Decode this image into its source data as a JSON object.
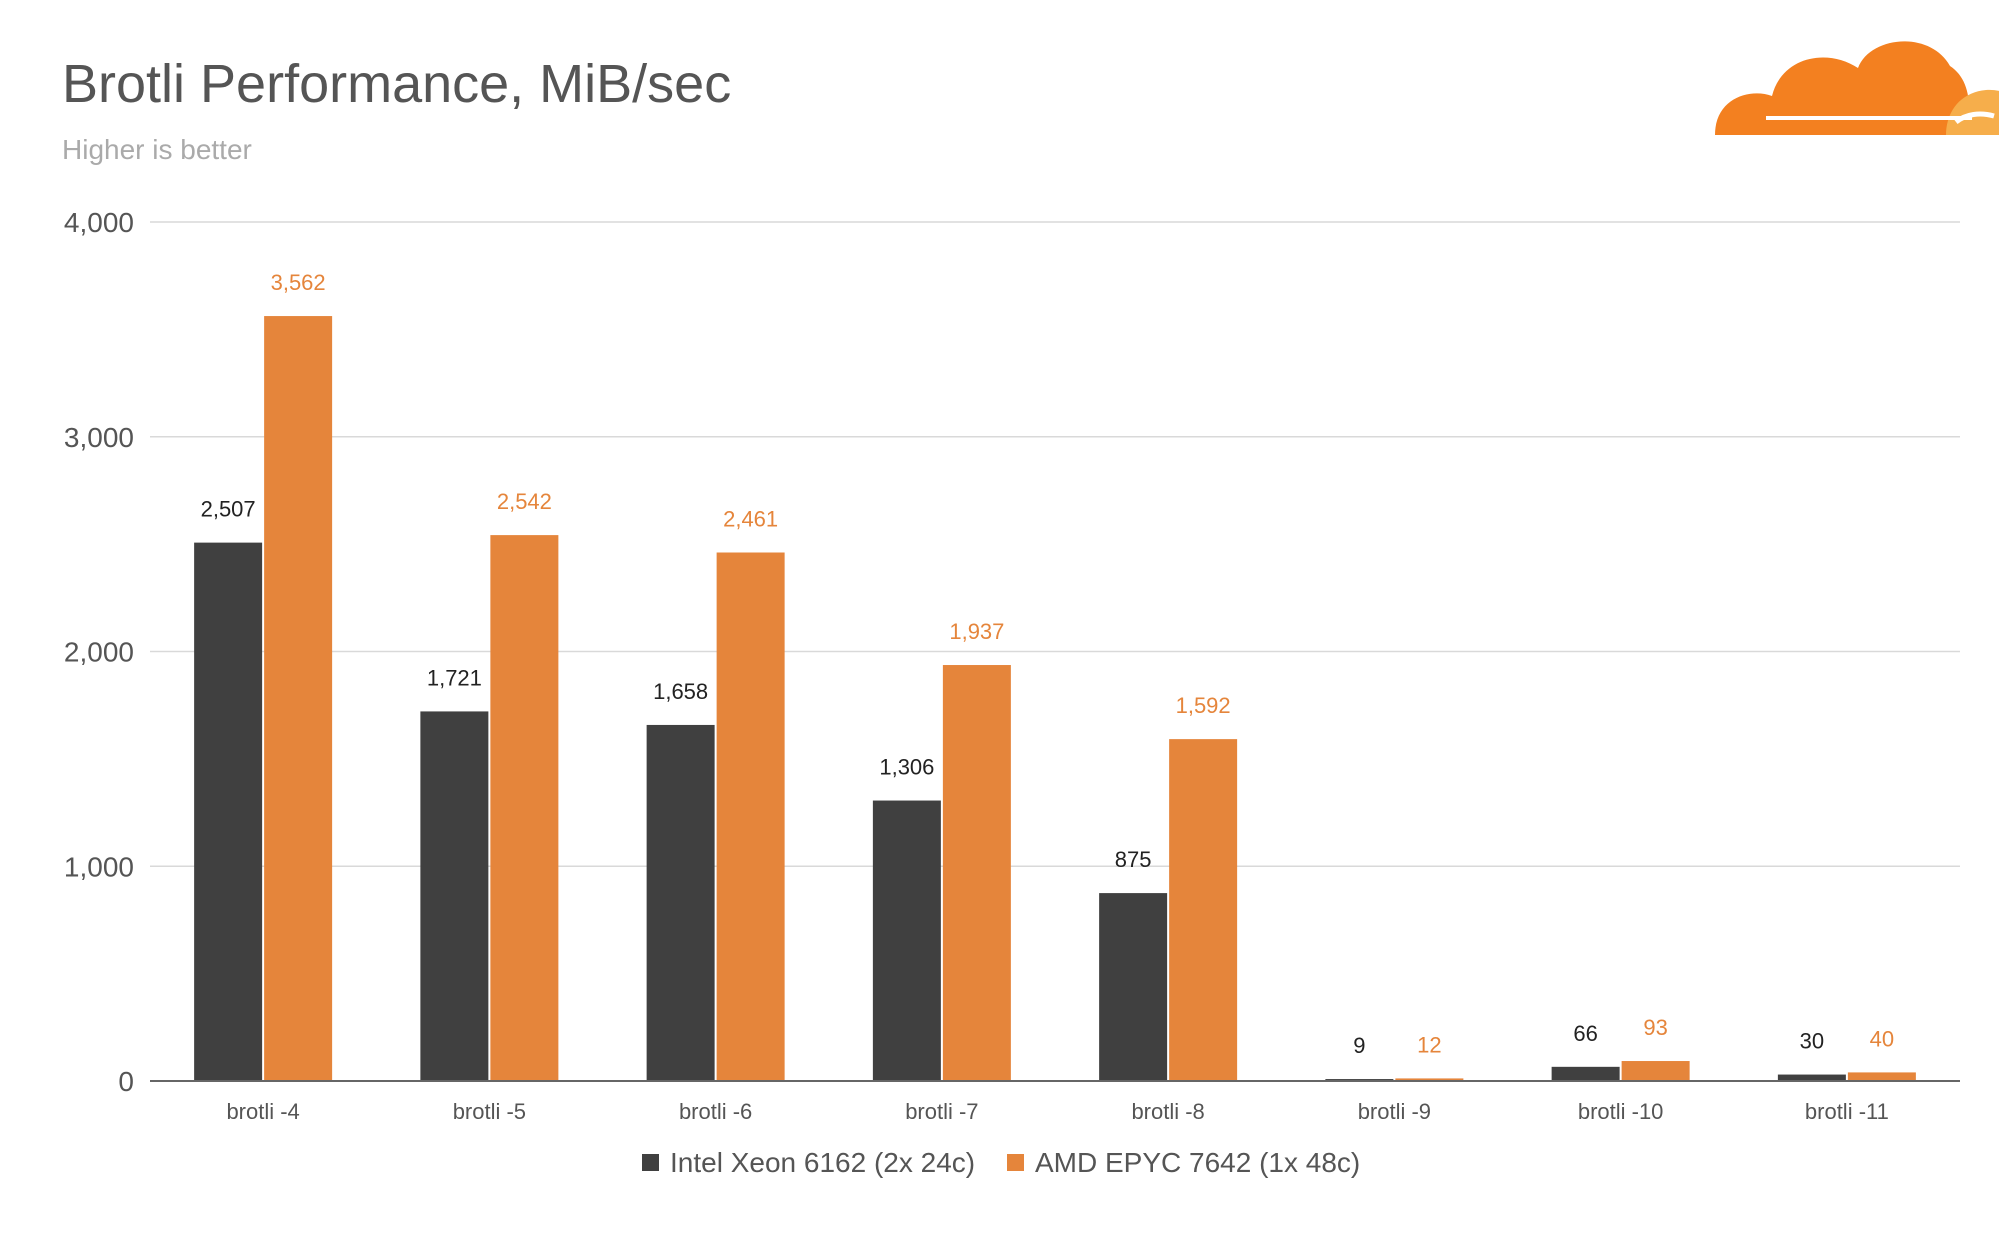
{
  "chart_data": {
    "type": "bar",
    "title": "Brotli Performance, MiB/sec",
    "subtitle": "Higher is better",
    "categories": [
      "brotli -4",
      "brotli -5",
      "brotli -6",
      "brotli -7",
      "brotli -8",
      "brotli -9",
      "brotli -10",
      "brotli -11"
    ],
    "series": [
      {
        "name": "Intel Xeon 6162 (2x 24c)",
        "color": "#404040",
        "label_color": "#222222",
        "values": [
          2507,
          1721,
          1658,
          1306,
          875,
          9,
          66,
          30
        ],
        "labels": [
          "2,507",
          "1,721",
          "1,658",
          "1,306",
          "875",
          "9",
          "66",
          "30"
        ]
      },
      {
        "name": "AMD EPYC 7642 (1x 48c)",
        "color": "#E5853B",
        "label_color": "#E5853B",
        "values": [
          3562,
          2542,
          2461,
          1937,
          1592,
          12,
          93,
          40
        ],
        "labels": [
          "3,562",
          "2,542",
          "2,461",
          "1,937",
          "1,592",
          "12",
          "93",
          "40"
        ]
      }
    ],
    "ylim": [
      0,
      4000
    ],
    "yticks": [
      0,
      1000,
      2000,
      3000,
      4000
    ],
    "ytick_labels": [
      "0",
      "1,000",
      "2,000",
      "3,000",
      "4,000"
    ],
    "xlabel": "",
    "ylabel": "",
    "grid": true,
    "legend_position": "bottom-center"
  },
  "logo": {
    "name": "cloudflare-logo-icon",
    "colors": [
      "#F38020",
      "#F6AE4B"
    ]
  },
  "colors": {
    "grid": "#D9D9D9",
    "axis": "#666666",
    "title": "#555555",
    "subtitle": "#AAAAAA",
    "tick_text": "#555555"
  }
}
